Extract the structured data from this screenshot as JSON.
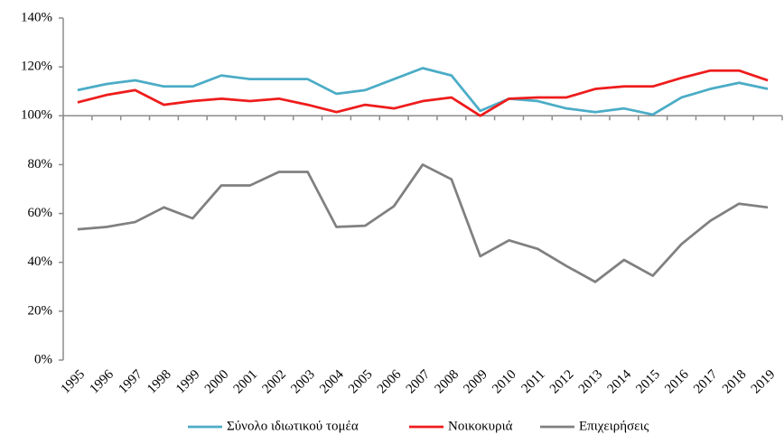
{
  "chart_data": {
    "type": "line",
    "categories": [
      "1995",
      "1996",
      "1997",
      "1998",
      "1999",
      "2000",
      "2001",
      "2002",
      "2003",
      "2004",
      "2005",
      "2006",
      "2007",
      "2008",
      "2009",
      "2010",
      "2011",
      "2012",
      "2013",
      "2014",
      "2015",
      "2016",
      "2017",
      "2018",
      "2019"
    ],
    "series": [
      {
        "name": "Σύνολο ιδιωτικού τομέα",
        "color": "#4bacc6",
        "values": [
          110.5,
          113,
          114.5,
          112,
          112,
          116.5,
          115,
          115,
          115,
          109,
          110.5,
          115,
          119.5,
          116.5,
          102,
          107,
          106,
          103,
          101.5,
          103,
          100.5,
          107.5,
          111,
          113.5,
          111
        ]
      },
      {
        "name": "Νοικοκυριά",
        "color": "#ee1c1c",
        "values": [
          105.5,
          108.5,
          110.5,
          104.5,
          106,
          107,
          106,
          107,
          104.5,
          101.5,
          104.5,
          103,
          106,
          107.5,
          100,
          107,
          107.5,
          107.5,
          111,
          112,
          112,
          115.5,
          118.5,
          118.5,
          114.5
        ]
      },
      {
        "name": "Επιχειρήσεις",
        "color": "#808080",
        "values": [
          53.5,
          54.5,
          56.5,
          62.5,
          58,
          71.5,
          71.5,
          77,
          77,
          54.5,
          55,
          63,
          80,
          74,
          42.5,
          49,
          45.5,
          38.5,
          32,
          41,
          34.5,
          47.5,
          57,
          64,
          62.5
        ]
      }
    ],
    "ylim": [
      0,
      140
    ],
    "yticks": [
      {
        "value": 0,
        "label": "0%"
      },
      {
        "value": 20,
        "label": "20%"
      },
      {
        "value": 40,
        "label": "40%"
      },
      {
        "value": 60,
        "label": "60%"
      },
      {
        "value": 80,
        "label": "80%"
      },
      {
        "value": 100,
        "label": "100%"
      },
      {
        "value": 120,
        "label": "120%"
      },
      {
        "value": 140,
        "label": "140%"
      }
    ],
    "x_axis_crosses": 100,
    "grid": false,
    "legend": "bottom"
  }
}
